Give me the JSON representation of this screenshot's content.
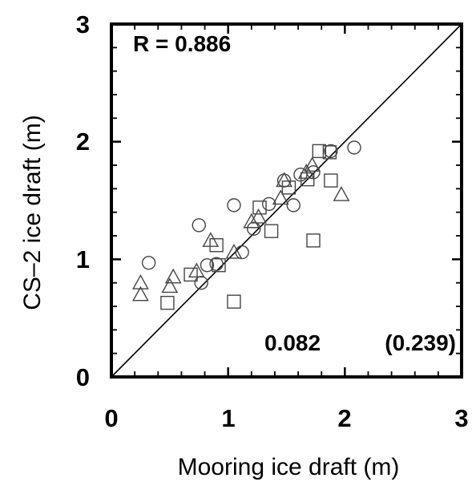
{
  "chart_data": {
    "type": "scatter",
    "title": "",
    "xlabel": "Mooring ice draft (m)",
    "ylabel": "CS–2 ice draft (m)",
    "xlim": [
      0,
      3
    ],
    "ylim": [
      0,
      3
    ],
    "xticks": [
      "0",
      "1",
      "2",
      "3"
    ],
    "yticks": [
      "0",
      "1",
      "2",
      "3"
    ],
    "grid": false,
    "legend": "none",
    "reference_line": "1:1",
    "annotations": {
      "correlation": "R = 0.886",
      "bias": "0.082",
      "rmse": "(0.239)"
    },
    "series": [
      {
        "marker": "circle",
        "points": [
          [
            0.32,
            0.97
          ],
          [
            0.75,
            1.29
          ],
          [
            0.77,
            0.8
          ],
          [
            0.82,
            0.95
          ],
          [
            0.9,
            0.96
          ],
          [
            1.05,
            1.46
          ],
          [
            1.12,
            1.06
          ],
          [
            1.22,
            1.26
          ],
          [
            1.35,
            1.47
          ],
          [
            1.48,
            1.67
          ],
          [
            1.56,
            1.46
          ],
          [
            1.62,
            1.72
          ],
          [
            1.73,
            1.74
          ],
          [
            1.88,
            1.92
          ],
          [
            2.08,
            1.95
          ]
        ]
      },
      {
        "marker": "square",
        "points": [
          [
            0.48,
            0.63
          ],
          [
            0.68,
            0.87
          ],
          [
            0.9,
            1.12
          ],
          [
            0.92,
            0.95
          ],
          [
            1.05,
            0.64
          ],
          [
            1.27,
            1.44
          ],
          [
            1.37,
            1.24
          ],
          [
            1.52,
            1.61
          ],
          [
            1.68,
            1.68
          ],
          [
            1.73,
            1.16
          ],
          [
            1.78,
            1.92
          ],
          [
            1.87,
            1.91
          ],
          [
            1.88,
            1.67
          ]
        ]
      },
      {
        "marker": "triangle",
        "points": [
          [
            0.25,
            0.8
          ],
          [
            0.25,
            0.7
          ],
          [
            0.5,
            0.77
          ],
          [
            0.53,
            0.85
          ],
          [
            0.73,
            0.9
          ],
          [
            0.85,
            1.16
          ],
          [
            1.05,
            1.06
          ],
          [
            1.2,
            1.32
          ],
          [
            1.26,
            1.36
          ],
          [
            1.45,
            1.52
          ],
          [
            1.48,
            1.67
          ],
          [
            1.67,
            1.74
          ],
          [
            1.72,
            1.8
          ],
          [
            1.97,
            1.55
          ]
        ]
      }
    ]
  }
}
